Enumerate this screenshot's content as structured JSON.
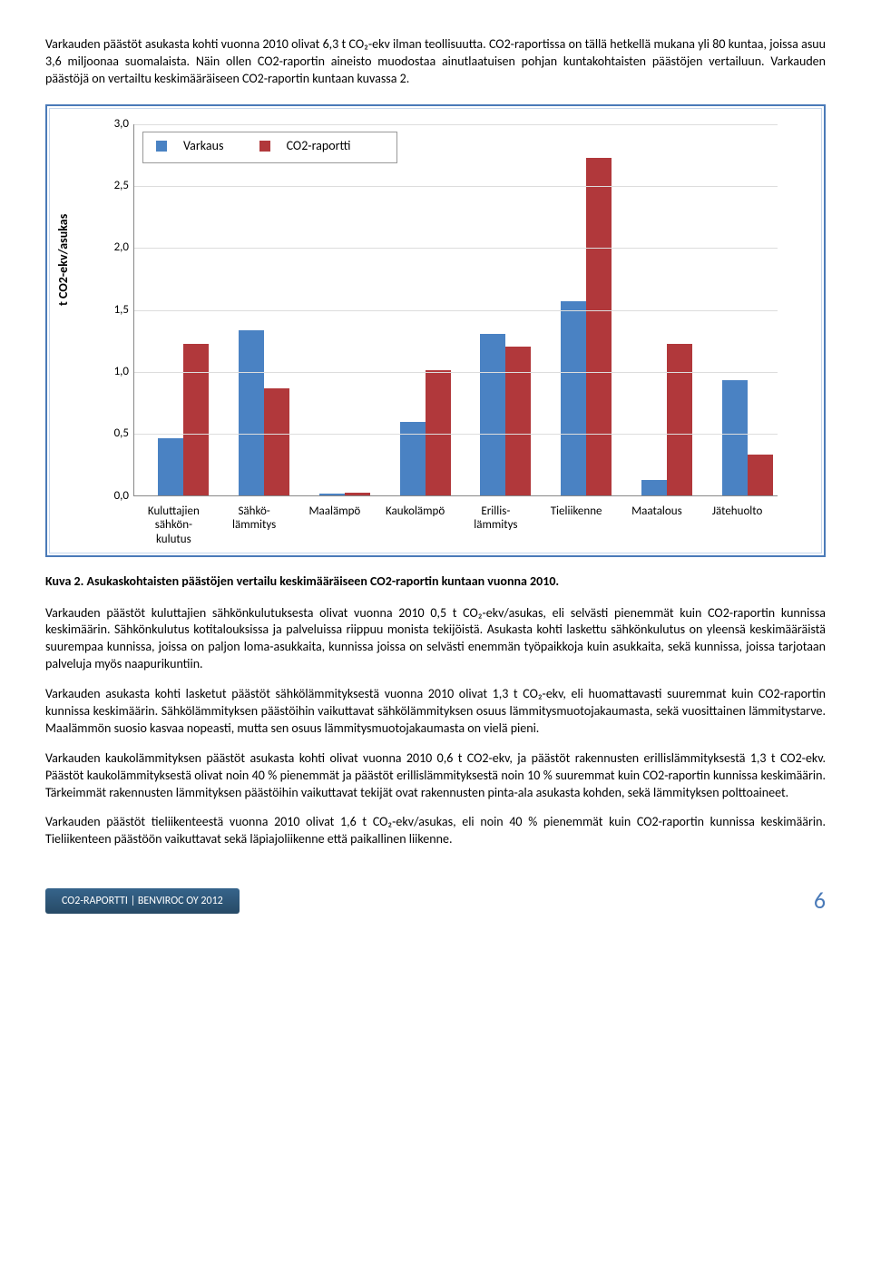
{
  "paragraphs": {
    "p1": "Varkauden päästöt asukasta kohti vuonna 2010 olivat 6,3 t CO₂-ekv ilman teollisuutta. CO2-raportissa on tällä hetkellä mukana yli 80 kuntaa, joissa asuu 3,6 miljoonaa suomalaista. Näin ollen CO2-raportin aineisto muodostaa ainutlaatuisen pohjan kuntakohtaisten päästöjen vertailuun. Varkauden päästöjä on vertailtu keskimääräiseen CO2-raportin kuntaan kuvassa 2.",
    "p2": "Varkauden päästöt kuluttajien sähkönkulutuksesta olivat vuonna 2010 0,5 t CO₂-ekv/asukas, eli selvästi pienemmät kuin CO2-raportin kunnissa keskimäärin. Sähkönkulutus kotitalouksissa ja palveluissa riippuu monista tekijöistä. Asukasta kohti laskettu sähkönkulutus on yleensä keskimääräistä suurempaa kunnissa, joissa on paljon loma-asukkaita, kunnissa joissa on selvästi enemmän työpaikkoja kuin asukkaita, sekä kunnissa, joissa tarjotaan palveluja myös naapurikuntiin.",
    "p3": "Varkauden asukasta kohti lasketut päästöt sähkölämmityksestä vuonna 2010 olivat 1,3 t CO₂-ekv, eli huomattavasti suuremmat kuin CO2-raportin kunnissa keskimäärin. Sähkölämmityksen päästöihin vaikuttavat sähkölämmityksen osuus lämmitysmuotojakaumasta, sekä vuosittainen lämmitystarve. Maalämmön suosio kasvaa nopeasti, mutta sen osuus lämmitysmuotojakaumasta on vielä pieni.",
    "p4": "Varkauden kaukolämmityksen päästöt asukasta kohti olivat vuonna 2010 0,6 t CO2-ekv, ja päästöt rakennusten erillislämmityksestä 1,3 t CO2-ekv. Päästöt kaukolämmityksestä olivat noin 40 % pienemmät ja päästöt erillislämmityksestä noin 10 % suuremmat kuin CO2-raportin kunnissa keskimäärin. Tärkeimmät rakennusten lämmityksen päästöihin vaikuttavat tekijät ovat rakennusten pinta-ala asukasta kohden, sekä lämmityksen polttoaineet.",
    "p5": "Varkauden päästöt tieliikenteestä vuonna 2010 olivat 1,6 t CO₂-ekv/asukas, eli noin 40 % pienemmät kuin CO2-raportin kunnissa keskimäärin. Tieliikenteen päästöön vaikuttavat sekä läpiajoliikenne että paikallinen liikenne."
  },
  "caption": "Kuva 2. Asukaskohtaisten päästöjen vertailu keskimääräiseen CO2-raportin kuntaan vuonna 2010.",
  "chart": {
    "ylabel": "t CO2-ekv/asukas",
    "ylim_max": 3.0,
    "ytick_step": 0.5,
    "series": [
      {
        "name": "Varkaus",
        "color": "#4a82c3"
      },
      {
        "name": "CO2-raportti",
        "color": "#b1383b"
      }
    ],
    "categories": [
      {
        "label": "Kuluttajien sähkön-kulutus",
        "v": 0.46,
        "c": 1.22
      },
      {
        "label": "Sähkö-lämmitys",
        "v": 1.33,
        "c": 0.86
      },
      {
        "label": "Maalämpö",
        "v": 0.01,
        "c": 0.02
      },
      {
        "label": "Kaukolämpö",
        "v": 0.59,
        "c": 1.01
      },
      {
        "label": "Erillis-lämmitys",
        "v": 1.3,
        "c": 1.2
      },
      {
        "label": "Tieliikenne",
        "v": 1.56,
        "c": 2.72
      },
      {
        "label": "Maatalous",
        "v": 0.12,
        "c": 1.22
      },
      {
        "label": "Jätehuolto",
        "v": 0.93,
        "c": 0.33
      }
    ]
  },
  "footer": {
    "text": "CO2-RAPORTTI | BENVIROC OY 2012",
    "page": "6"
  }
}
